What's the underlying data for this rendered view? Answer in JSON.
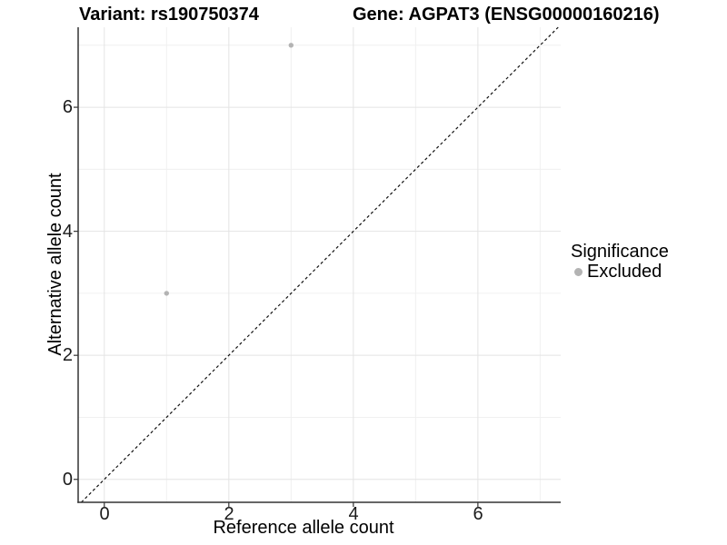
{
  "header": {
    "title_left": "Variant: rs190750374",
    "title_right": "Gene: AGPAT3 (ENSG00000160216)"
  },
  "chart_data": {
    "type": "scatter",
    "titles": {
      "left": "Variant: rs190750374",
      "right": "Gene: AGPAT3 (ENSG00000160216)"
    },
    "xlabel": "Reference allele count",
    "ylabel": "Alternative allele count",
    "xlim": [
      -0.42,
      7.33
    ],
    "ylim": [
      -0.37,
      7.29
    ],
    "major_ticks": [
      0,
      2,
      4,
      6
    ],
    "minor_ticks": [
      1,
      3,
      5,
      7
    ],
    "x_tick_labels": [
      "0",
      "2",
      "4",
      "6"
    ],
    "y_tick_labels": [
      "0",
      "2",
      "4",
      "6"
    ],
    "grid": true,
    "series": [
      {
        "name": "Excluded",
        "color": "#b3b3b3",
        "points": [
          [
            1,
            3
          ],
          [
            3,
            7
          ]
        ]
      }
    ],
    "reference_line": {
      "type": "identity",
      "slope": 1,
      "intercept": 0,
      "style": "dashed",
      "color": "#111111"
    },
    "legend": {
      "title": "Significance",
      "position": "right",
      "items": [
        {
          "label": "Excluded",
          "color": "#b3b3b3"
        }
      ]
    },
    "colors": {
      "background": "#ffffff",
      "grid_major": "#e4e4e4",
      "grid_minor": "#f0f0f0",
      "axis_line": "#333333",
      "tick_mark": "#333333",
      "point": "#b3b3b3"
    }
  }
}
